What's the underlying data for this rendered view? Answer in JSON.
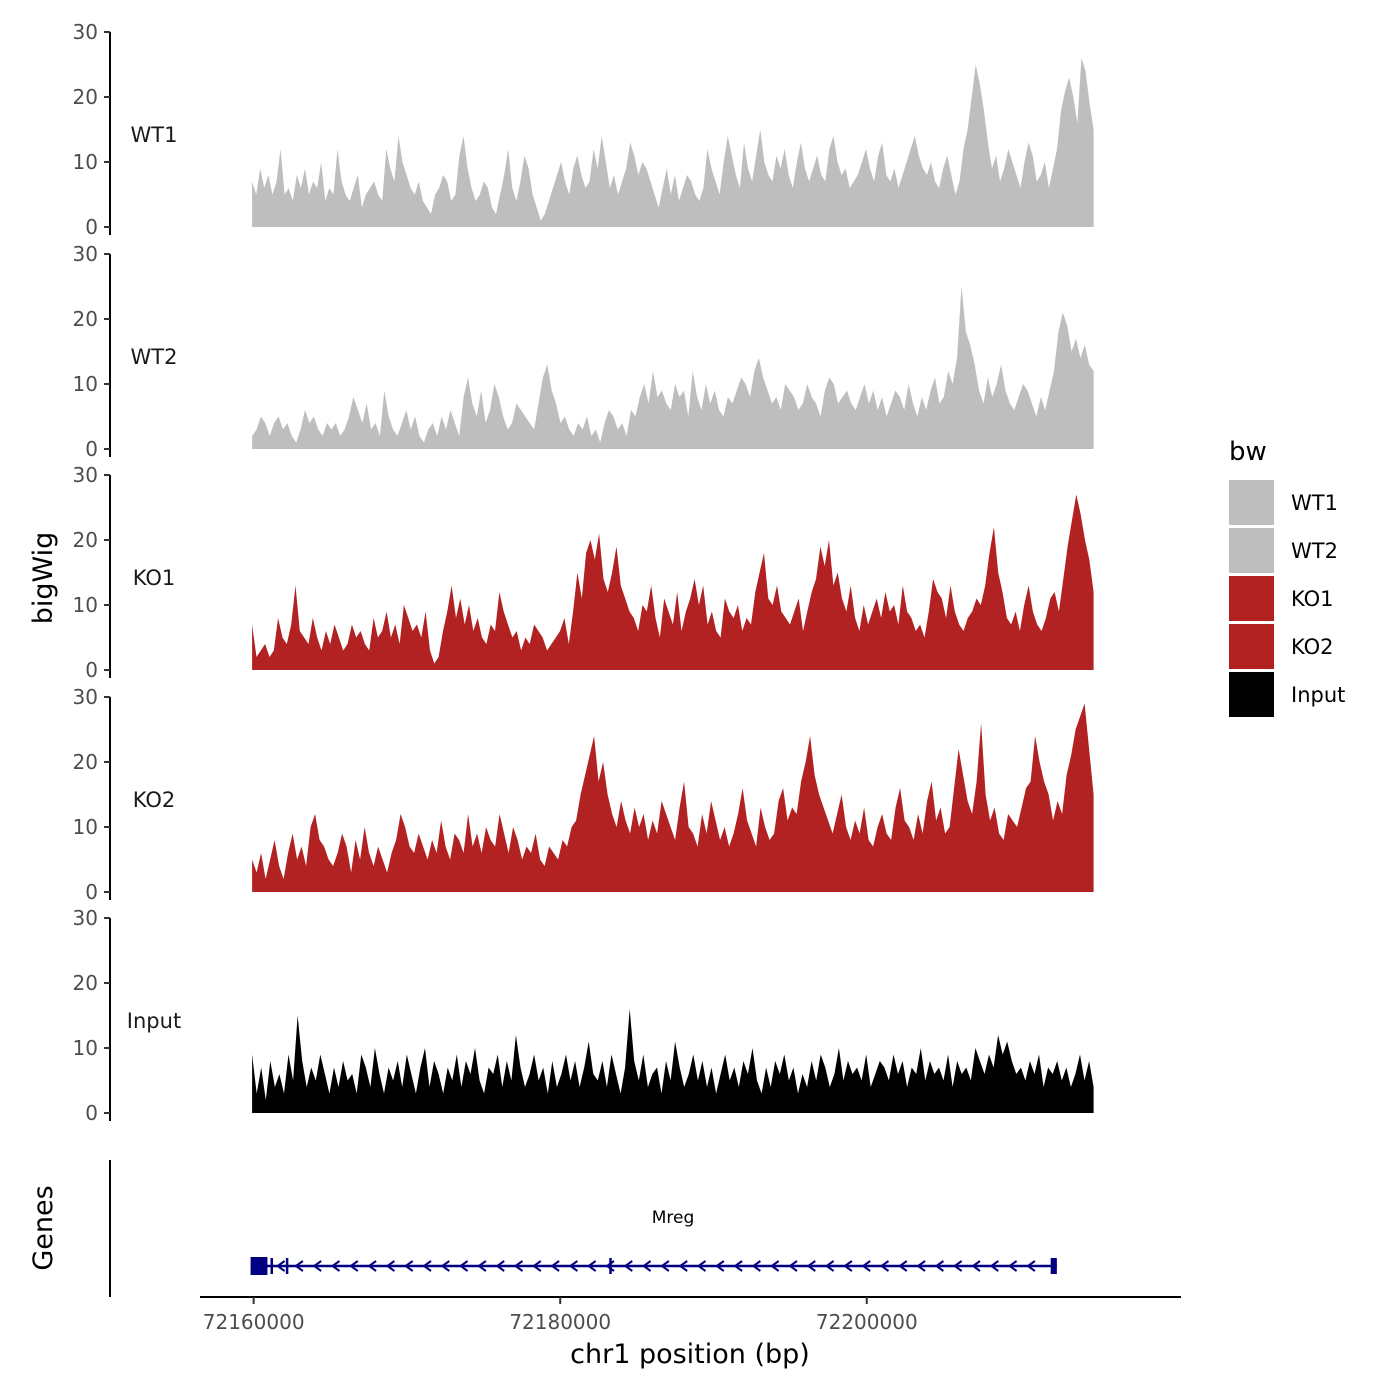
{
  "chart_data": {
    "type": "area",
    "ylabel": "bigWig",
    "gene_panel_label": "Genes",
    "xlabel": "chr1 position (bp)",
    "ylim": [
      0,
      30
    ],
    "y_ticks": [
      0,
      10,
      20,
      30
    ],
    "x_range": [
      72159900,
      72214800
    ],
    "x_axis_range": [
      72156500,
      72220500
    ],
    "x_ticks": [
      72160000,
      72180000,
      72200000
    ],
    "x_tick_labels": [
      "72160000",
      "72180000",
      "72200000"
    ],
    "legend": {
      "title": "bw",
      "position": "right",
      "entries": [
        {
          "label": "WT1",
          "color": "#bebebe"
        },
        {
          "label": "WT2",
          "color": "#bebebe"
        },
        {
          "label": "KO1",
          "color": "#b22222"
        },
        {
          "label": "KO2",
          "color": "#b22222"
        },
        {
          "label": "Input",
          "color": "#000000"
        }
      ]
    },
    "series": [
      {
        "name": "WT1",
        "color": "#bebebe",
        "values": [
          7,
          5,
          9,
          6,
          8,
          5,
          7,
          12,
          5,
          6,
          4,
          8,
          6,
          9,
          5,
          7,
          6,
          10,
          4,
          6,
          5,
          12,
          7,
          5,
          4,
          6,
          8,
          3,
          5,
          6,
          7,
          5,
          4,
          12,
          9,
          7,
          14,
          10,
          8,
          6,
          5,
          7,
          4,
          3,
          2,
          5,
          6,
          8,
          7,
          4,
          5,
          11,
          14,
          9,
          6,
          4,
          5,
          7,
          6,
          3,
          2,
          5,
          8,
          12,
          6,
          4,
          7,
          11,
          9,
          5,
          3,
          1,
          2,
          4,
          6,
          8,
          10,
          7,
          5,
          9,
          11,
          8,
          6,
          7,
          12,
          9,
          14,
          10,
          6,
          8,
          5,
          7,
          9,
          13,
          11,
          8,
          10,
          9,
          7,
          5,
          3,
          6,
          9,
          5,
          8,
          4,
          6,
          8,
          7,
          5,
          4,
          6,
          12,
          9,
          7,
          5,
          10,
          14,
          11,
          8,
          6,
          13,
          9,
          7,
          11,
          15,
          10,
          8,
          7,
          11,
          9,
          12,
          8,
          6,
          10,
          13,
          9,
          7,
          9,
          11,
          8,
          7,
          12,
          14,
          10,
          8,
          9,
          6,
          7,
          8,
          10,
          12,
          9,
          7,
          11,
          13,
          8,
          7,
          9,
          6,
          8,
          10,
          12,
          14,
          11,
          9,
          8,
          10,
          7,
          6,
          9,
          11,
          8,
          5,
          7,
          12,
          15,
          20,
          25,
          22,
          18,
          13,
          9,
          11,
          7,
          9,
          12,
          10,
          8,
          6,
          10,
          13,
          11,
          7,
          8,
          10,
          6,
          9,
          12,
          18,
          21,
          23,
          20,
          16,
          26,
          24,
          19,
          15
        ]
      },
      {
        "name": "WT2",
        "color": "#bebebe",
        "values": [
          2,
          3,
          5,
          4,
          2,
          4,
          5,
          3,
          4,
          2,
          1,
          3,
          6,
          4,
          5,
          3,
          2,
          4,
          3,
          4,
          2,
          3,
          5,
          8,
          6,
          4,
          7,
          3,
          4,
          2,
          9,
          5,
          3,
          2,
          4,
          6,
          3,
          5,
          2,
          1,
          3,
          4,
          2,
          5,
          3,
          6,
          4,
          2,
          8,
          11,
          7,
          5,
          9,
          4,
          6,
          10,
          8,
          5,
          3,
          4,
          7,
          6,
          5,
          4,
          3,
          7,
          11,
          13,
          9,
          7,
          4,
          5,
          3,
          2,
          4,
          3,
          5,
          2,
          3,
          1,
          4,
          6,
          5,
          3,
          4,
          2,
          6,
          5,
          8,
          10,
          7,
          12,
          8,
          9,
          7,
          6,
          10,
          8,
          9,
          5,
          12,
          8,
          6,
          10,
          7,
          9,
          6,
          5,
          8,
          7,
          9,
          11,
          10,
          8,
          12,
          14,
          11,
          9,
          7,
          8,
          6,
          10,
          9,
          8,
          6,
          7,
          10,
          8,
          7,
          5,
          9,
          11,
          10,
          7,
          8,
          9,
          7,
          6,
          8,
          10,
          7,
          9,
          6,
          8,
          5,
          7,
          9,
          8,
          6,
          10,
          7,
          5,
          8,
          6,
          9,
          11,
          7,
          8,
          12,
          10,
          14,
          25,
          18,
          16,
          13,
          9,
          7,
          11,
          8,
          10,
          13,
          9,
          7,
          6,
          8,
          10,
          9,
          7,
          5,
          8,
          6,
          9,
          12,
          18,
          21,
          19,
          15,
          17,
          14,
          16,
          13,
          12
        ]
      },
      {
        "name": "KO1",
        "color": "#b22222",
        "values": [
          7,
          2,
          3,
          4,
          2,
          3,
          8,
          5,
          4,
          7,
          13,
          6,
          5,
          4,
          8,
          5,
          3,
          6,
          4,
          7,
          5,
          3,
          4,
          7,
          5,
          6,
          4,
          3,
          8,
          5,
          6,
          9,
          5,
          7,
          4,
          10,
          8,
          6,
          7,
          5,
          9,
          3,
          1,
          2,
          6,
          9,
          13,
          8,
          11,
          7,
          10,
          6,
          8,
          5,
          4,
          7,
          6,
          12,
          9,
          7,
          5,
          6,
          3,
          5,
          4,
          7,
          6,
          5,
          3,
          4,
          5,
          6,
          8,
          4,
          9,
          15,
          11,
          18,
          20,
          17,
          21,
          14,
          12,
          15,
          19,
          13,
          11,
          9,
          8,
          6,
          10,
          9,
          13,
          8,
          5,
          11,
          9,
          7,
          12,
          6,
          9,
          11,
          14,
          10,
          13,
          7,
          9,
          6,
          5,
          11,
          9,
          8,
          10,
          6,
          8,
          7,
          12,
          15,
          18,
          11,
          10,
          13,
          9,
          8,
          7,
          9,
          11,
          6,
          9,
          12,
          14,
          19,
          16,
          20,
          13,
          15,
          11,
          9,
          13,
          8,
          6,
          10,
          7,
          9,
          11,
          8,
          12,
          9,
          10,
          7,
          13,
          9,
          8,
          6,
          7,
          5,
          9,
          14,
          12,
          11,
          8,
          13,
          9,
          7,
          6,
          8,
          9,
          11,
          10,
          13,
          18,
          22,
          15,
          12,
          8,
          7,
          9,
          6,
          10,
          13,
          9,
          7,
          6,
          8,
          11,
          12,
          9,
          14,
          19,
          23,
          27,
          24,
          20,
          17,
          12
        ]
      },
      {
        "name": "KO2",
        "color": "#b22222",
        "values": [
          5,
          3,
          6,
          2,
          5,
          8,
          4,
          2,
          6,
          9,
          5,
          7,
          4,
          10,
          12,
          8,
          7,
          5,
          4,
          6,
          9,
          7,
          3,
          8,
          5,
          10,
          6,
          4,
          7,
          5,
          3,
          6,
          8,
          12,
          10,
          7,
          6,
          9,
          7,
          5,
          8,
          6,
          11,
          7,
          5,
          9,
          8,
          6,
          12,
          7,
          9,
          6,
          10,
          8,
          7,
          12,
          9,
          6,
          10,
          8,
          5,
          7,
          6,
          9,
          5,
          4,
          7,
          6,
          5,
          8,
          7,
          10,
          11,
          15,
          18,
          21,
          24,
          17,
          20,
          15,
          12,
          10,
          14,
          11,
          9,
          13,
          10,
          12,
          8,
          11,
          9,
          14,
          12,
          10,
          8,
          13,
          17,
          10,
          9,
          7,
          12,
          9,
          14,
          11,
          8,
          10,
          7,
          9,
          12,
          16,
          11,
          9,
          7,
          13,
          10,
          8,
          9,
          14,
          16,
          11,
          13,
          12,
          17,
          20,
          24,
          18,
          15,
          13,
          11,
          9,
          12,
          15,
          10,
          8,
          11,
          9,
          13,
          8,
          7,
          10,
          12,
          9,
          8,
          13,
          16,
          11,
          10,
          8,
          12,
          9,
          14,
          17,
          11,
          13,
          9,
          10,
          16,
          22,
          18,
          14,
          12,
          17,
          26,
          15,
          11,
          13,
          9,
          8,
          12,
          11,
          10,
          13,
          16,
          17,
          24,
          20,
          17,
          15,
          11,
          14,
          12,
          18,
          21,
          25,
          27,
          29,
          22,
          15
        ]
      },
      {
        "name": "Input",
        "color": "#000000",
        "values": [
          9,
          3,
          7,
          2,
          8,
          4,
          6,
          3,
          9,
          5,
          15,
          8,
          4,
          7,
          5,
          9,
          6,
          3,
          7,
          4,
          8,
          5,
          6,
          3,
          9,
          7,
          4,
          10,
          6,
          3,
          7,
          5,
          8,
          4,
          9,
          6,
          3,
          7,
          10,
          4,
          8,
          6,
          3,
          7,
          5,
          9,
          4,
          8,
          6,
          10,
          5,
          3,
          7,
          6,
          9,
          4,
          8,
          5,
          12,
          7,
          4,
          6,
          9,
          5,
          7,
          3,
          8,
          4,
          6,
          9,
          5,
          8,
          4,
          7,
          11,
          6,
          5,
          8,
          4,
          9,
          6,
          3,
          7,
          16,
          8,
          5,
          9,
          4,
          6,
          7,
          3,
          8,
          5,
          11,
          7,
          4,
          6,
          9,
          5,
          8,
          4,
          7,
          3,
          6,
          9,
          5,
          7,
          4,
          8,
          6,
          10,
          5,
          3,
          7,
          4,
          8,
          6,
          9,
          5,
          7,
          3,
          6,
          4,
          8,
          5,
          9,
          7,
          4,
          6,
          10,
          5,
          8,
          6,
          7,
          5,
          9,
          4,
          6,
          8,
          7,
          5,
          9,
          6,
          8,
          4,
          7,
          6,
          10,
          5,
          8,
          6,
          7,
          5,
          9,
          4,
          8,
          6,
          7,
          5,
          10,
          8,
          6,
          9,
          7,
          12,
          9,
          11,
          8,
          6,
          7,
          5,
          8,
          6,
          9,
          4,
          7,
          6,
          8,
          5,
          7,
          4,
          6,
          9,
          5,
          8,
          4
        ]
      }
    ],
    "gene": {
      "name": "Mreg",
      "color": "#000080",
      "strand": "-",
      "start": 72159800,
      "end": 72212400,
      "exons": [
        [
          72159800,
          72160900
        ],
        [
          72161100,
          72161200
        ],
        [
          72162100,
          72162200
        ],
        [
          72183200,
          72183300
        ],
        [
          72212000,
          72212400
        ]
      ]
    }
  }
}
